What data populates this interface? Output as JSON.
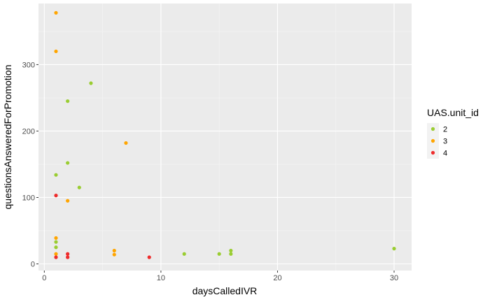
{
  "chart_data": {
    "type": "scatter",
    "xlabel": "daysCalledIVR",
    "ylabel": "questionsAnsweredForPromotion",
    "xlim": [
      -0.5,
      31.5
    ],
    "ylim": [
      -10,
      392
    ],
    "x_ticks": [
      0,
      10,
      20,
      30
    ],
    "y_ticks": [
      0,
      100,
      200,
      300
    ],
    "grid": true,
    "background": "#ebebeb",
    "legend": {
      "title": "UAS.unit_id",
      "position": "right",
      "entries": [
        "2",
        "3",
        "4"
      ]
    },
    "series": [
      {
        "name": "2",
        "color": "#9acd32",
        "points": [
          {
            "x": 1,
            "y": 134
          },
          {
            "x": 1,
            "y": 33
          },
          {
            "x": 1,
            "y": 25
          },
          {
            "x": 2,
            "y": 245
          },
          {
            "x": 2,
            "y": 152
          },
          {
            "x": 3,
            "y": 115
          },
          {
            "x": 4,
            "y": 272
          },
          {
            "x": 12,
            "y": 15
          },
          {
            "x": 15,
            "y": 15
          },
          {
            "x": 16,
            "y": 20
          },
          {
            "x": 16,
            "y": 15
          },
          {
            "x": 30,
            "y": 23
          }
        ]
      },
      {
        "name": "3",
        "color": "#ffa500",
        "points": [
          {
            "x": 1,
            "y": 378
          },
          {
            "x": 1,
            "y": 320
          },
          {
            "x": 1,
            "y": 39
          },
          {
            "x": 1,
            "y": 15
          },
          {
            "x": 2,
            "y": 95
          },
          {
            "x": 6,
            "y": 20
          },
          {
            "x": 6,
            "y": 14
          },
          {
            "x": 7,
            "y": 182
          }
        ]
      },
      {
        "name": "4",
        "color": "#ee2c2c",
        "points": [
          {
            "x": 1,
            "y": 103
          },
          {
            "x": 1,
            "y": 10
          },
          {
            "x": 2,
            "y": 15
          },
          {
            "x": 2,
            "y": 10
          },
          {
            "x": 9,
            "y": 10
          }
        ]
      }
    ]
  }
}
